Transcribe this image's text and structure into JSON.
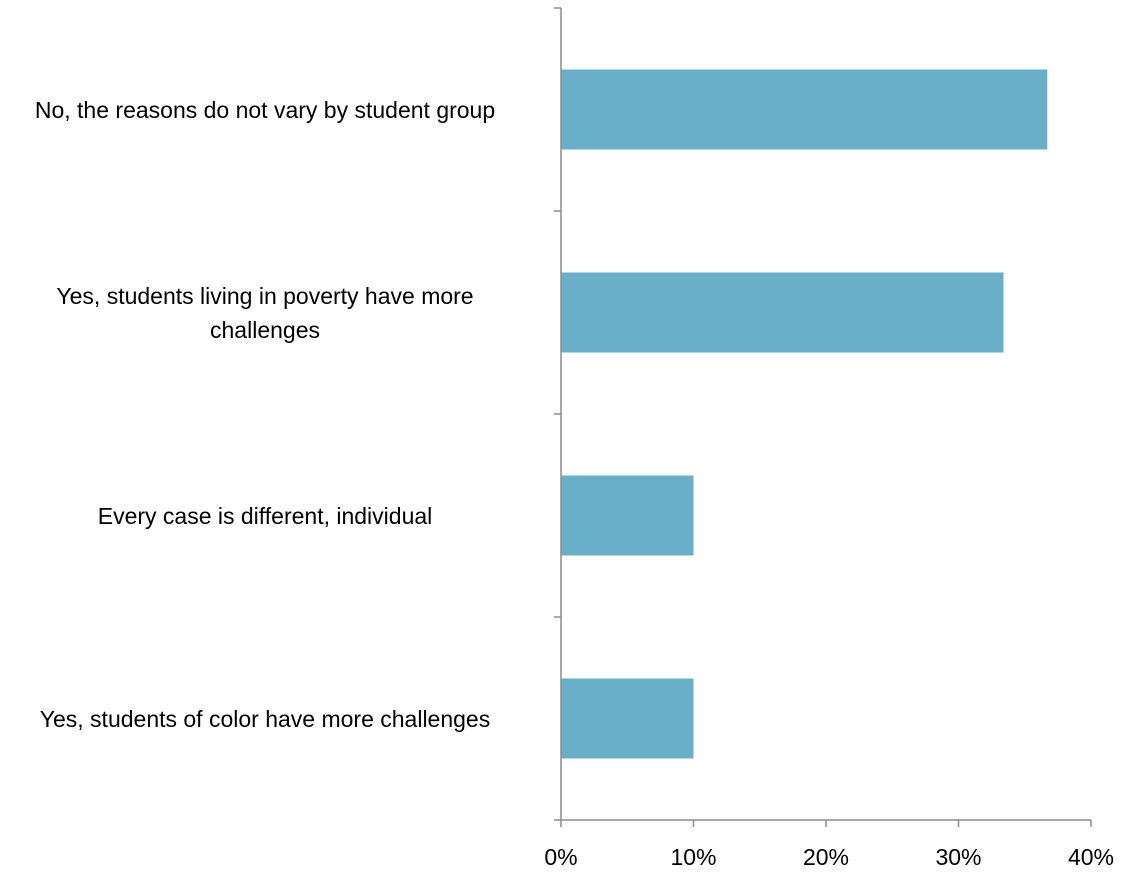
{
  "colors": {
    "bar": "#6aafc8",
    "axis": "#8c8c8c"
  },
  "chart_data": {
    "type": "bar",
    "orientation": "horizontal",
    "categories": [
      "No, the reasons do not vary by student group",
      "Yes, students living in poverty have more challenges",
      "Every case is different, individual",
      "Yes, students of color have more challenges"
    ],
    "values": [
      36.7,
      33.4,
      10.0,
      10.0
    ],
    "xlim": [
      0,
      40
    ],
    "xticks": [
      0,
      10,
      20,
      30,
      40
    ],
    "tick_labels": [
      "0%",
      "10%",
      "20%",
      "30%",
      "40%"
    ],
    "title": "",
    "xlabel": "",
    "ylabel": "",
    "grid": false,
    "legend": "none"
  }
}
